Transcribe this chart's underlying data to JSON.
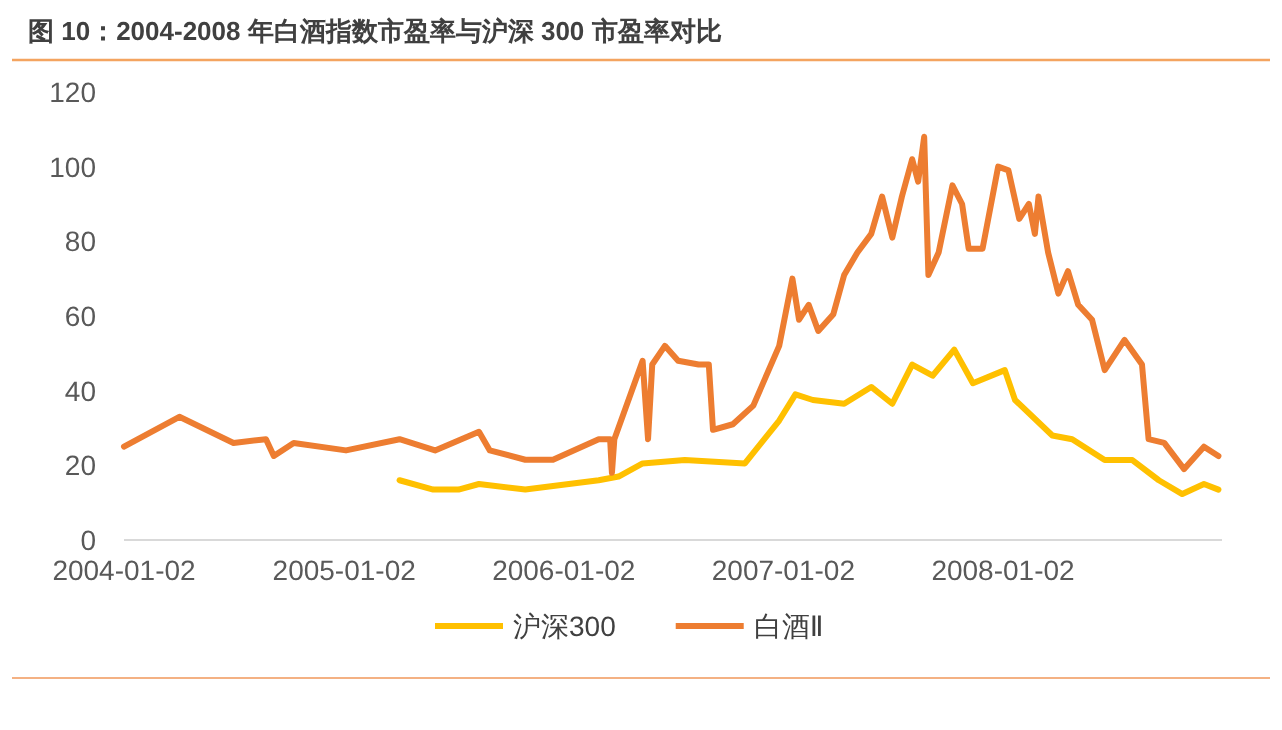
{
  "chart_data": {
    "type": "line",
    "title": "图 10：2004-2008 年白酒指数市盈率与沪深 300 市盈率对比",
    "xlim": [
      "2004-01-02",
      "2008-12-31"
    ],
    "xticks": [
      "2004-01-02",
      "2005-01-02",
      "2006-01-02",
      "2007-01-02",
      "2008-01-02"
    ],
    "ylim": [
      0,
      120
    ],
    "yticks": [
      0,
      20,
      40,
      60,
      80,
      100,
      120
    ],
    "legend": "bottom",
    "series": [
      {
        "name": "沪深300",
        "color": "#ffc000",
        "x": [
          "2005-04-04",
          "2005-05-30",
          "2005-07-11",
          "2005-08-14",
          "2005-10-30",
          "2006-03-01",
          "2006-04-03",
          "2006-05-13",
          "2006-07-22",
          "2006-10-30",
          "2006-12-26",
          "2007-01-22",
          "2007-02-20",
          "2007-04-13",
          "2007-05-28",
          "2007-07-02",
          "2007-08-04",
          "2007-09-07",
          "2007-10-13",
          "2007-11-13",
          "2008-01-05",
          "2008-01-22",
          "2008-03-24",
          "2008-04-26",
          "2008-06-19",
          "2008-08-04",
          "2008-09-17",
          "2008-10-26",
          "2008-12-01",
          "2008-12-25"
        ],
        "values": [
          16,
          13.5,
          13.5,
          15,
          13.5,
          16,
          17,
          20.5,
          21.4,
          20.5,
          32,
          39,
          37.5,
          36.5,
          41,
          36.5,
          47,
          44,
          51,
          42,
          45.5,
          37.5,
          28,
          27,
          21.4,
          21.4,
          16,
          12.3,
          15,
          13.5
        ]
      },
      {
        "name": "白酒Ⅱ",
        "color": "#ed7d31",
        "x": [
          "2004-01-02",
          "2004-04-03",
          "2004-07-02",
          "2004-08-25",
          "2004-09-07",
          "2004-10-10",
          "2005-01-05",
          "2005-04-04",
          "2005-06-02",
          "2005-08-14",
          "2005-09-01",
          "2005-10-30",
          "2005-12-15",
          "2006-03-01",
          "2006-03-20",
          "2006-03-23",
          "2006-03-27",
          "2006-05-13",
          "2006-05-22",
          "2006-05-29",
          "2006-06-19",
          "2006-07-11",
          "2006-08-14",
          "2006-08-31",
          "2006-09-07",
          "2006-10-10",
          "2006-11-13",
          "2006-12-26",
          "2007-01-17",
          "2007-01-28",
          "2007-02-13",
          "2007-03-01",
          "2007-03-26",
          "2007-04-13",
          "2007-05-05",
          "2007-05-28",
          "2007-06-15",
          "2007-07-02",
          "2007-07-18",
          "2007-08-04",
          "2007-08-14",
          "2007-08-24",
          "2007-08-31",
          "2007-09-17",
          "2007-10-10",
          "2007-10-26",
          "2007-11-06",
          "2007-11-29",
          "2007-12-25",
          "2008-01-11",
          "2008-01-29",
          "2008-02-14",
          "2008-02-24",
          "2008-03-01",
          "2008-03-17",
          "2008-04-03",
          "2008-04-19",
          "2008-05-06",
          "2008-05-29",
          "2008-06-19",
          "2008-07-22",
          "2008-08-20",
          "2008-08-31",
          "2008-09-26",
          "2008-10-29",
          "2008-12-01",
          "2008-12-25"
        ],
        "values": [
          25,
          33,
          26,
          27,
          22.5,
          26,
          24,
          27,
          24,
          29,
          24,
          21.5,
          21.5,
          27,
          27,
          18,
          27,
          48,
          27,
          47,
          52,
          48,
          47,
          47,
          29.5,
          31,
          36,
          52,
          70,
          59,
          63,
          56,
          60.5,
          71,
          77,
          82,
          92,
          81,
          92,
          102,
          96,
          108,
          71,
          77,
          95,
          90,
          78,
          78,
          100,
          99,
          86,
          90,
          82,
          92,
          77,
          66,
          72,
          63,
          59,
          45.5,
          53.6,
          47,
          27,
          26,
          19,
          25,
          22.5
        ]
      }
    ]
  }
}
